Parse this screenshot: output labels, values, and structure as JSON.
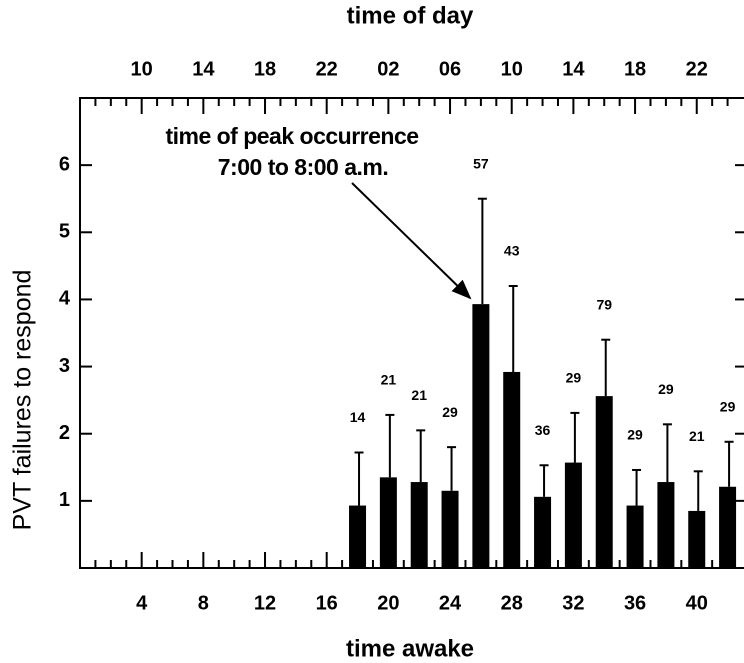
{
  "chart_data": {
    "type": "bar",
    "title": "time of day",
    "x_label": "time awake",
    "y_label": "PVT failures to respond",
    "annotation": [
      "time of peak occurrence",
      "7:00 to 8:00 a.m."
    ],
    "x": [
      18,
      20,
      22,
      24,
      26,
      28,
      30,
      32,
      34,
      36,
      38,
      40,
      42
    ],
    "values": [
      0.93,
      1.35,
      1.28,
      1.15,
      3.93,
      2.92,
      1.06,
      1.57,
      2.56,
      0.93,
      1.28,
      0.85,
      1.21
    ],
    "errors": [
      0.79,
      0.93,
      0.77,
      0.65,
      1.57,
      1.28,
      0.47,
      0.74,
      0.84,
      0.53,
      0.86,
      0.59,
      0.67
    ],
    "counts": [
      14,
      21,
      21,
      29,
      57,
      43,
      36,
      29,
      79,
      29,
      29,
      21,
      29
    ],
    "color": "#000000",
    "xlim": [
      0,
      43
    ],
    "ylim": [
      0,
      7
    ],
    "xticks": [
      4,
      8,
      12,
      16,
      20,
      24,
      28,
      32,
      36,
      40
    ],
    "xminorticks": [
      1,
      2,
      3,
      5,
      6,
      7,
      9,
      10,
      11,
      13,
      14,
      15,
      17,
      18,
      19,
      21,
      22,
      23,
      25,
      26,
      27,
      29,
      30,
      31,
      33,
      34,
      35,
      37,
      38,
      39,
      41,
      42
    ],
    "yticks": [
      1,
      2,
      3,
      4,
      5,
      6
    ],
    "x2ticks": [
      {
        "value": 4,
        "label": "10"
      },
      {
        "value": 8,
        "label": "14"
      },
      {
        "value": 12,
        "label": "18"
      },
      {
        "value": 16,
        "label": "22"
      },
      {
        "value": 20,
        "label": "02"
      },
      {
        "value": 24,
        "label": "06"
      },
      {
        "value": 28,
        "label": "10"
      },
      {
        "value": 32,
        "label": "14"
      },
      {
        "value": 36,
        "label": "18"
      },
      {
        "value": 40,
        "label": "22"
      }
    ]
  }
}
